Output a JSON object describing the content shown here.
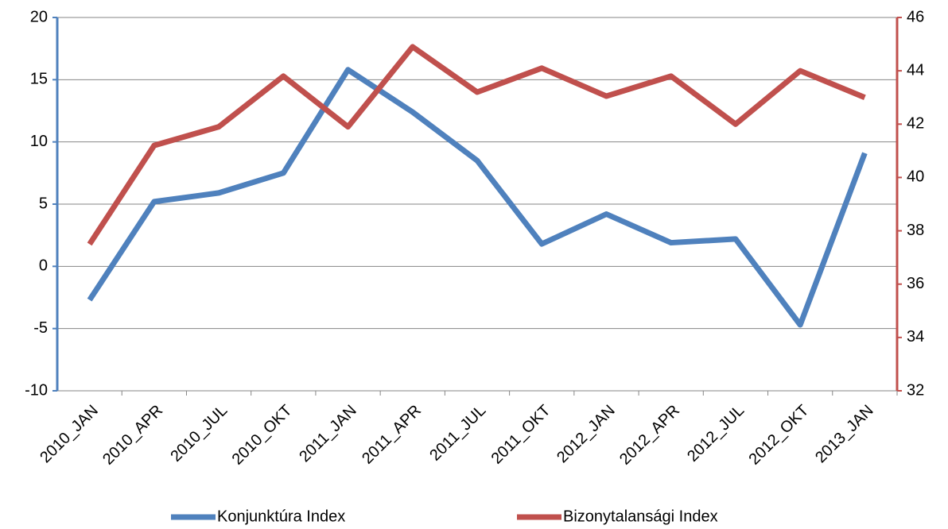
{
  "chart_data": {
    "type": "line",
    "categories": [
      "2010_JAN",
      "2010_APR",
      "2010_JUL",
      "2010_OKT",
      "2011_JAN",
      "2011_APR",
      "2011_JUL",
      "2011_OKT",
      "2012_JAN",
      "2012_APR",
      "2012_JUL",
      "2012_OKT",
      "2013_JAN"
    ],
    "series": [
      {
        "name": "Konjunktúra Index",
        "color": "#4f81bd",
        "values": [
          -2.7,
          5.2,
          5.9,
          7.5,
          15.8,
          12.4,
          8.5,
          1.8,
          4.2,
          1.9,
          2.2,
          -4.7,
          9.1
        ]
      },
      {
        "name": "Bizonytalansági Index",
        "color": "#c0504d",
        "axis": "y2",
        "values": [
          37.5,
          41.2,
          41.9,
          43.8,
          41.9,
          44.9,
          43.2,
          44.1,
          43.05,
          43.8,
          42.0,
          44.0,
          43.0
        ]
      }
    ],
    "ylim": [
      -10,
      20
    ],
    "yticks": [
      -10,
      -5,
      0,
      5,
      10,
      15,
      20
    ],
    "y2lim": [
      32,
      46
    ],
    "y2ticks": [
      32,
      34,
      36,
      38,
      40,
      42,
      44,
      46
    ],
    "grid": true,
    "legend": "bottom"
  }
}
